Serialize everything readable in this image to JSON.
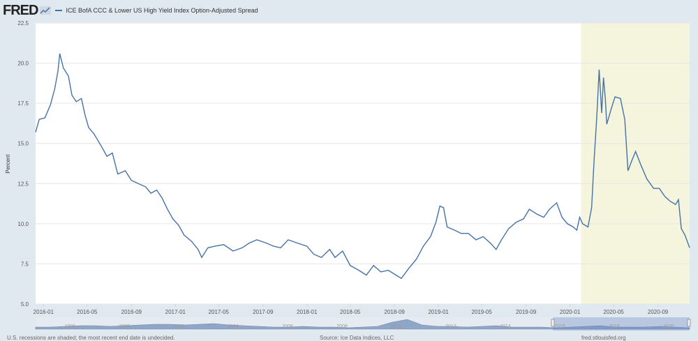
{
  "header": {
    "logo": "FRED",
    "series_title": "ICE BofA CCC & Lower US High Yield Index Option-Adjusted Spread"
  },
  "footer": {
    "note": "U.S. recessions are shaded; the most recent end date is undecided.",
    "source": "Source: Ice Data Indices, LLC",
    "site": "fred.stlouisfed.org"
  },
  "colors": {
    "line": "#4572a7",
    "recession": "#f5f4dd",
    "background": "#e1e9f0"
  },
  "navigator": {
    "years": [
      "1998",
      "2000",
      "2002",
      "2004",
      "2006",
      "2008",
      "2010",
      "2012",
      "2014",
      "2016",
      "2018",
      "2020"
    ]
  },
  "chart_data": {
    "type": "line",
    "title": "ICE BofA CCC & Lower US High Yield Index Option-Adjusted Spread",
    "ylabel": "Percent",
    "xlabel": "",
    "ylim": [
      5.0,
      22.5
    ],
    "xlim": [
      "2015-12-10",
      "2020-11-28"
    ],
    "yticks": [
      "5.0",
      "7.5",
      "10.0",
      "12.5",
      "15.0",
      "17.5",
      "20.0",
      "22.5"
    ],
    "xticks": [
      "2016-01",
      "2016-05",
      "2016-09",
      "2017-01",
      "2017-05",
      "2017-09",
      "2018-01",
      "2018-05",
      "2018-09",
      "2019-01",
      "2019-05",
      "2019-09",
      "2020-01",
      "2020-05",
      "2020-09"
    ],
    "recession": [
      "2020-02-01",
      "2020-11-28"
    ],
    "series": [
      {
        "name": "ICE BofA CCC & Lower US High Yield Index Option-Adjusted Spread",
        "points": [
          [
            "2015-12-10",
            15.7
          ],
          [
            "2015-12-20",
            16.5
          ],
          [
            "2016-01-05",
            16.6
          ],
          [
            "2016-01-20",
            17.4
          ],
          [
            "2016-02-01",
            18.4
          ],
          [
            "2016-02-10",
            19.5
          ],
          [
            "2016-02-15",
            20.6
          ],
          [
            "2016-02-25",
            19.7
          ],
          [
            "2016-03-10",
            19.2
          ],
          [
            "2016-03-20",
            18.0
          ],
          [
            "2016-04-01",
            17.6
          ],
          [
            "2016-04-15",
            17.8
          ],
          [
            "2016-04-25",
            16.8
          ],
          [
            "2016-05-05",
            16.0
          ],
          [
            "2016-05-20",
            15.6
          ],
          [
            "2016-06-10",
            14.8
          ],
          [
            "2016-06-25",
            14.2
          ],
          [
            "2016-07-10",
            14.4
          ],
          [
            "2016-07-25",
            13.1
          ],
          [
            "2016-08-15",
            13.3
          ],
          [
            "2016-09-01",
            12.7
          ],
          [
            "2016-09-20",
            12.5
          ],
          [
            "2016-10-10",
            12.3
          ],
          [
            "2016-10-25",
            11.9
          ],
          [
            "2016-11-10",
            12.1
          ],
          [
            "2016-11-25",
            11.6
          ],
          [
            "2016-12-10",
            10.9
          ],
          [
            "2016-12-25",
            10.3
          ],
          [
            "2017-01-10",
            9.9
          ],
          [
            "2017-01-25",
            9.3
          ],
          [
            "2017-02-15",
            8.9
          ],
          [
            "2017-03-05",
            8.4
          ],
          [
            "2017-03-15",
            7.9
          ],
          [
            "2017-04-01",
            8.5
          ],
          [
            "2017-04-20",
            8.6
          ],
          [
            "2017-05-15",
            8.7
          ],
          [
            "2017-06-10",
            8.3
          ],
          [
            "2017-07-05",
            8.5
          ],
          [
            "2017-07-25",
            8.8
          ],
          [
            "2017-08-15",
            9.0
          ],
          [
            "2017-09-10",
            8.8
          ],
          [
            "2017-10-01",
            8.6
          ],
          [
            "2017-10-20",
            8.5
          ],
          [
            "2017-11-10",
            9.0
          ],
          [
            "2017-12-05",
            8.8
          ],
          [
            "2018-01-01",
            8.6
          ],
          [
            "2018-01-20",
            8.1
          ],
          [
            "2018-02-10",
            7.9
          ],
          [
            "2018-03-05",
            8.4
          ],
          [
            "2018-03-20",
            7.9
          ],
          [
            "2018-04-10",
            8.3
          ],
          [
            "2018-05-01",
            7.4
          ],
          [
            "2018-05-25",
            7.1
          ],
          [
            "2018-06-15",
            6.8
          ],
          [
            "2018-07-05",
            7.4
          ],
          [
            "2018-07-25",
            7.0
          ],
          [
            "2018-08-15",
            7.1
          ],
          [
            "2018-09-05",
            6.8
          ],
          [
            "2018-09-20",
            6.6
          ],
          [
            "2018-10-10",
            7.2
          ],
          [
            "2018-11-01",
            7.8
          ],
          [
            "2018-11-20",
            8.6
          ],
          [
            "2018-12-10",
            9.2
          ],
          [
            "2018-12-25",
            10.1
          ],
          [
            "2019-01-05",
            11.1
          ],
          [
            "2019-01-15",
            11.0
          ],
          [
            "2019-01-25",
            9.8
          ],
          [
            "2019-02-15",
            9.6
          ],
          [
            "2019-03-05",
            9.4
          ],
          [
            "2019-03-25",
            9.4
          ],
          [
            "2019-04-15",
            9.0
          ],
          [
            "2019-05-05",
            9.2
          ],
          [
            "2019-05-25",
            8.8
          ],
          [
            "2019-06-10",
            8.4
          ],
          [
            "2019-06-25",
            9.0
          ],
          [
            "2019-07-15",
            9.7
          ],
          [
            "2019-08-05",
            10.1
          ],
          [
            "2019-08-25",
            10.3
          ],
          [
            "2019-09-10",
            10.9
          ],
          [
            "2019-10-01",
            10.6
          ],
          [
            "2019-10-20",
            10.4
          ],
          [
            "2019-11-05",
            10.9
          ],
          [
            "2019-11-25",
            11.3
          ],
          [
            "2019-12-10",
            10.4
          ],
          [
            "2019-12-25",
            10.0
          ],
          [
            "2020-01-10",
            9.8
          ],
          [
            "2020-01-20",
            9.6
          ],
          [
            "2020-01-28",
            10.4
          ],
          [
            "2020-02-05",
            10.0
          ],
          [
            "2020-02-20",
            9.8
          ],
          [
            "2020-03-01",
            11.0
          ],
          [
            "2020-03-08",
            14.0
          ],
          [
            "2020-03-15",
            16.5
          ],
          [
            "2020-03-22",
            19.6
          ],
          [
            "2020-03-29",
            16.9
          ],
          [
            "2020-04-03",
            19.1
          ],
          [
            "2020-04-08",
            17.8
          ],
          [
            "2020-04-12",
            16.2
          ],
          [
            "2020-04-25",
            17.2
          ],
          [
            "2020-05-05",
            17.9
          ],
          [
            "2020-05-20",
            17.8
          ],
          [
            "2020-06-01",
            16.5
          ],
          [
            "2020-06-10",
            13.3
          ],
          [
            "2020-06-20",
            13.9
          ],
          [
            "2020-07-01",
            14.5
          ],
          [
            "2020-07-15",
            13.7
          ],
          [
            "2020-08-01",
            12.8
          ],
          [
            "2020-08-20",
            12.2
          ],
          [
            "2020-09-05",
            12.2
          ],
          [
            "2020-09-20",
            11.7
          ],
          [
            "2020-10-05",
            11.4
          ],
          [
            "2020-10-20",
            11.2
          ],
          [
            "2020-10-28",
            11.5
          ],
          [
            "2020-11-05",
            9.7
          ],
          [
            "2020-11-15",
            9.3
          ],
          [
            "2020-11-28",
            8.5
          ]
        ]
      }
    ]
  }
}
